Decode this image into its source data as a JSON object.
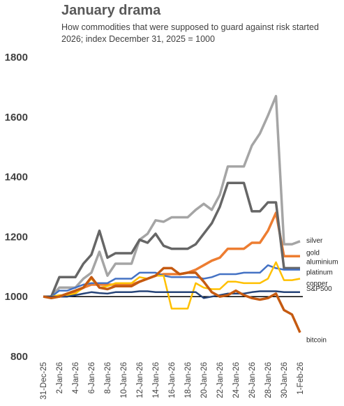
{
  "title": "January drama",
  "subtitle": "How commodities that were supposed to  guard against risk started 2026; index December 31, 2025 = 1000",
  "chart_data": {
    "type": "line",
    "title": "January drama",
    "subtitle": "How commodities that were supposed to  guard against risk started 2026; index December 31, 2025 = 1000",
    "ylim": [
      800,
      1800
    ],
    "yticks": [
      800,
      1000,
      1200,
      1400,
      1600,
      1800
    ],
    "reference_line": 1000,
    "x_tick_labels": [
      "31-Dec-25",
      "2-Jan-26",
      "4-Jan-26",
      "6-Jan-26",
      "8-Jan-26",
      "10-Jan-26",
      "12-Jan-26",
      "14-Jan-26",
      "16-Jan-26",
      "18-Jan-26",
      "20-Jan-26",
      "22-Jan-26",
      "24-Jan-26",
      "26-Jan-26",
      "28-Jan-26",
      "30-Jan-26",
      "1-Feb-26"
    ],
    "x": [
      "31-Dec-25",
      "1-Jan-26",
      "2-Jan-26",
      "3-Jan-26",
      "4-Jan-26",
      "5-Jan-26",
      "6-Jan-26",
      "7-Jan-26",
      "8-Jan-26",
      "9-Jan-26",
      "10-Jan-26",
      "11-Jan-26",
      "12-Jan-26",
      "13-Jan-26",
      "14-Jan-26",
      "15-Jan-26",
      "16-Jan-26",
      "17-Jan-26",
      "18-Jan-26",
      "19-Jan-26",
      "20-Jan-26",
      "21-Jan-26",
      "22-Jan-26",
      "23-Jan-26",
      "24-Jan-26",
      "25-Jan-26",
      "26-Jan-26",
      "27-Jan-26",
      "28-Jan-26",
      "29-Jan-26",
      "30-Jan-26",
      "31-Jan-26",
      "1-Feb-26"
    ],
    "series": [
      {
        "name": "silver",
        "color": "#A5A5A5",
        "values": [
          1000,
          1000,
          1030,
          1030,
          1030,
          1060,
          1080,
          1150,
          1070,
          1110,
          1110,
          1110,
          1190,
          1210,
          1255,
          1250,
          1265,
          1265,
          1265,
          1290,
          1310,
          1290,
          1340,
          1435,
          1435,
          1435,
          1505,
          1545,
          1605,
          1670,
          1175,
          1175,
          1185
        ]
      },
      {
        "name": "gold",
        "color": "#ED7D31",
        "values": [
          1000,
          1000,
          1000,
          1010,
          1015,
          1030,
          1040,
          1040,
          1040,
          1040,
          1040,
          1040,
          1050,
          1060,
          1070,
          1075,
          1075,
          1075,
          1080,
          1090,
          1105,
          1120,
          1130,
          1160,
          1160,
          1160,
          1180,
          1180,
          1220,
          1280,
          1135,
          1135,
          1135
        ]
      },
      {
        "name": "aluminium",
        "color": "#666666",
        "values": [
          1000,
          1000,
          1065,
          1065,
          1065,
          1110,
          1140,
          1220,
          1130,
          1145,
          1145,
          1145,
          1190,
          1180,
          1210,
          1170,
          1160,
          1160,
          1160,
          1175,
          1210,
          1245,
          1300,
          1380,
          1380,
          1380,
          1285,
          1285,
          1315,
          1315,
          1095,
          1095,
          1095
        ]
      },
      {
        "name": "platinum",
        "color": "#4472C4",
        "values": [
          1000,
          1000,
          1020,
          1020,
          1030,
          1040,
          1045,
          1045,
          1045,
          1060,
          1060,
          1060,
          1080,
          1080,
          1080,
          1070,
          1065,
          1065,
          1065,
          1065,
          1060,
          1065,
          1075,
          1075,
          1075,
          1080,
          1080,
          1080,
          1105,
          1095,
          1090,
          1090,
          1090
        ]
      },
      {
        "name": "copper",
        "color": "#FFC000",
        "values": [
          1000,
          1000,
          1005,
          1005,
          1010,
          1030,
          1060,
          1030,
          1035,
          1045,
          1045,
          1045,
          1065,
          1060,
          1070,
          1070,
          960,
          960,
          960,
          1045,
          1030,
          1025,
          1025,
          1050,
          1050,
          1045,
          1045,
          1045,
          1060,
          1115,
          1055,
          1055,
          1060
        ]
      },
      {
        "name": "S&P500",
        "color": "#264478",
        "values": [
          1000,
          1000,
          1000,
          1000,
          1005,
          1010,
          1015,
          1012,
          1010,
          1015,
          1015,
          1015,
          1018,
          1018,
          1015,
          1015,
          1015,
          1015,
          1015,
          1015,
          995,
          1000,
          1005,
          1010,
          1010,
          1010,
          1015,
          1018,
          1018,
          1018,
          1015,
          1015,
          1015
        ]
      },
      {
        "name": "bitcoin",
        "color": "#C55A11",
        "values": [
          1000,
          995,
          1000,
          1010,
          1020,
          1030,
          1065,
          1030,
          1025,
          1035,
          1035,
          1035,
          1050,
          1060,
          1070,
          1095,
          1095,
          1075,
          1080,
          1080,
          1050,
          1015,
          1000,
          1005,
          1020,
          1005,
          995,
          990,
          995,
          1010,
          955,
          940,
          880
        ]
      }
    ],
    "legend_placement": "right, next to line ends"
  }
}
